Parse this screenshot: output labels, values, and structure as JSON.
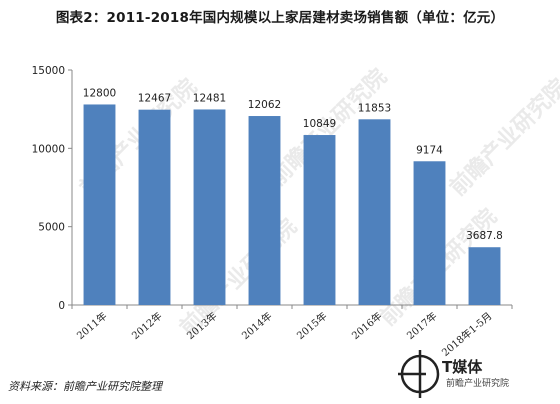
{
  "title": "图表2：2011-2018年国内规模以上家居建材卖场销售额（单位：亿元）",
  "source": "资料来源：前瞻产业研究院整理",
  "watermark_text": "前瞻产业研究院",
  "brand": {
    "name": "T媒体",
    "sub": "前瞻产业研究院"
  },
  "colors": {
    "bar": "#4f81bd",
    "axis": "#888888"
  },
  "chart_data": {
    "type": "bar",
    "title": "图表2：2011-2018年国内规模以上家居建材卖场销售额（单位：亿元）",
    "categories": [
      "2011年",
      "2012年",
      "2013年",
      "2014年",
      "2015年",
      "2016年",
      "2017年",
      "2018年1-5月"
    ],
    "values": [
      12800,
      12467,
      12481,
      12062,
      10849,
      11853,
      9174,
      3687.8
    ],
    "value_labels": [
      "12800",
      "12467",
      "12481",
      "12062",
      "10849",
      "11853",
      "9174",
      "3687.8"
    ],
    "ylim": [
      0,
      15000
    ],
    "yticks": [
      0,
      5000,
      10000,
      15000
    ],
    "ytick_labels": [
      "0",
      "5000",
      "10000",
      "15000"
    ],
    "grid": false,
    "legend": "none",
    "xlabel": "",
    "ylabel": ""
  }
}
